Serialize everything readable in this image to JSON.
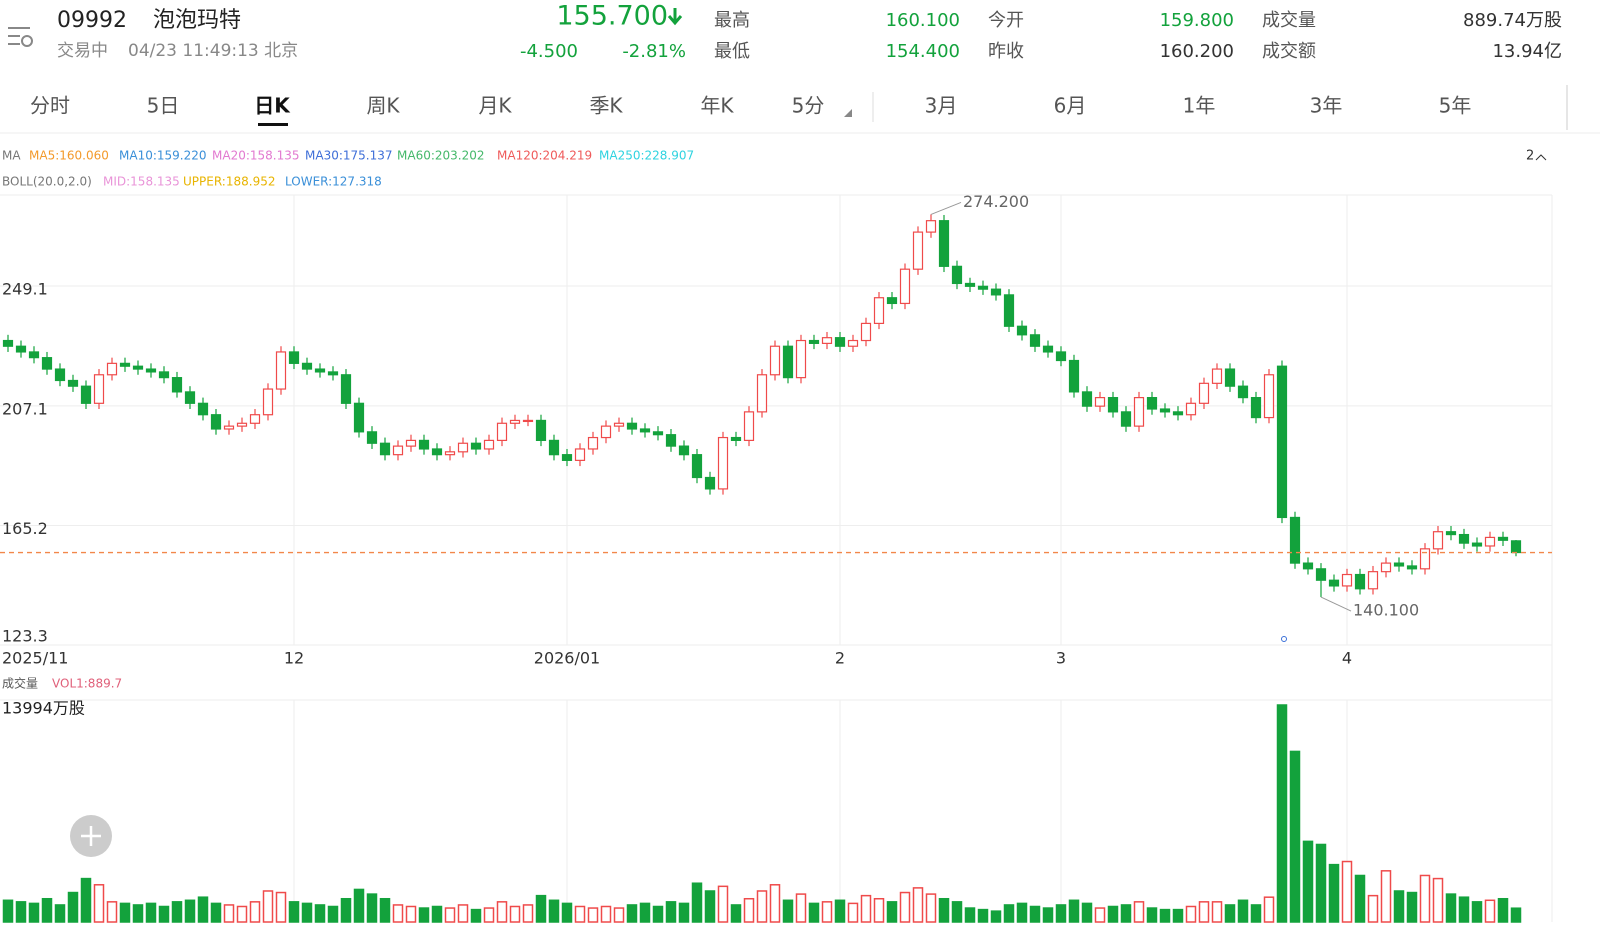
{
  "header": {
    "code": "09992",
    "name": "泡泡玛特",
    "status": "交易中",
    "time": "04/23 11:49:13 北京",
    "price": "155.700",
    "change": "-4.500",
    "change_pct": "-2.81%",
    "stats": [
      {
        "label": "最高",
        "value": "160.100"
      },
      {
        "label": "最低",
        "value": "154.400"
      },
      {
        "label": "今开",
        "value": "159.800"
      },
      {
        "label": "昨收",
        "value": "160.200"
      },
      {
        "label": "成交量",
        "value": "889.74万股"
      },
      {
        "label": "成交额",
        "value": "13.94亿"
      }
    ]
  },
  "tabs": [
    "分时",
    "5日",
    "日K",
    "周K",
    "月K",
    "季K",
    "年K",
    "5分",
    "3月",
    "6月",
    "1年",
    "3年",
    "5年"
  ],
  "indicators": {
    "ma": [
      {
        "text": "MA",
        "color": "#777777"
      },
      {
        "text": "MA5:160.060",
        "color": "#f39a2b"
      },
      {
        "text": "MA10:159.220",
        "color": "#3a8fd8"
      },
      {
        "text": "MA20:158.135",
        "color": "#e27ad0"
      },
      {
        "text": "MA30:175.137",
        "color": "#3f6fd8"
      },
      {
        "text": "MA60:203.202",
        "color": "#45b86a"
      },
      {
        "text": "MA120:204.219",
        "color": "#ef5a5a"
      },
      {
        "text": "MA250:228.907",
        "color": "#2fd3e0"
      }
    ],
    "boll": [
      {
        "text": "BOLL(20.0,2.0)",
        "color": "#777777"
      },
      {
        "text": "MID:158.135",
        "color": "#e994d8"
      },
      {
        "text": "UPPER:188.952",
        "color": "#e8b400"
      },
      {
        "text": "LOWER:127.318",
        "color": "#3a8fd8"
      }
    ],
    "toggle": "2"
  },
  "chart_data": {
    "type": "candlestick",
    "categories": [
      "2025/11",
      null,
      null,
      null,
      null,
      null,
      null,
      null,
      null,
      null,
      null,
      null,
      null,
      null,
      null,
      null,
      null,
      null,
      null,
      null,
      null,
      null,
      "12",
      null,
      null,
      null,
      null,
      null,
      null,
      null,
      null,
      null,
      null,
      null,
      null,
      null,
      null,
      null,
      null,
      null,
      null,
      null,
      null,
      "2026/01",
      null,
      null,
      null,
      null,
      null,
      null,
      null,
      null,
      null,
      null,
      null,
      null,
      null,
      null,
      null,
      null,
      null,
      null,
      null,
      null,
      "2",
      null,
      null,
      null,
      null,
      null,
      null,
      null,
      null,
      null,
      null,
      null,
      null,
      null,
      null,
      null,
      null,
      "3",
      null,
      null,
      null,
      null,
      null,
      null,
      null,
      null,
      null,
      null,
      null,
      null,
      null,
      null,
      null,
      null,
      null,
      null,
      null,
      null,
      null,
      "4",
      null,
      null,
      null,
      null,
      null,
      null,
      null,
      null,
      null,
      null,
      null,
      null,
      null
    ],
    "open": [
      230,
      228,
      226,
      224,
      220,
      216,
      214,
      208,
      218,
      222,
      221,
      220,
      219,
      217,
      212,
      208,
      204,
      199,
      200,
      201,
      204,
      213,
      226,
      222,
      220,
      219,
      218,
      208,
      198,
      194,
      190,
      193,
      195,
      192,
      190,
      191,
      194,
      192,
      195,
      201,
      202,
      202,
      195,
      190,
      188,
      192,
      196,
      200,
      201,
      199,
      198,
      197,
      193,
      190,
      182,
      178,
      196,
      195,
      205,
      218,
      228,
      217,
      230,
      229,
      231,
      228,
      230,
      236,
      245,
      243,
      255,
      268,
      272,
      256,
      250,
      249,
      248,
      246,
      235,
      232,
      228,
      226,
      223,
      212,
      207,
      210,
      205,
      200,
      210,
      206,
      205,
      204,
      208,
      215,
      220,
      214,
      210,
      203,
      221,
      168,
      152,
      150,
      146,
      144,
      148,
      143,
      149,
      152,
      151,
      150,
      157,
      163,
      162,
      159,
      158,
      161,
      159.8
    ],
    "high": [
      232,
      230,
      228,
      226,
      222,
      218,
      216,
      220,
      224,
      224,
      223,
      222,
      221,
      219,
      214,
      210,
      206,
      202,
      203,
      206,
      215,
      228,
      228,
      224,
      222,
      221,
      220,
      210,
      200,
      196,
      195,
      197,
      197,
      194,
      193,
      196,
      196,
      197,
      203,
      204,
      204,
      204,
      197,
      192,
      194,
      198,
      202,
      203,
      203,
      201,
      200,
      199,
      195,
      192,
      184,
      198,
      198,
      207,
      220,
      230,
      230,
      232,
      232,
      233,
      233,
      232,
      238,
      247,
      247,
      257,
      270,
      274.2,
      274,
      258,
      252,
      251,
      250,
      248,
      237,
      234,
      230,
      228,
      225,
      214,
      212,
      212,
      207,
      212,
      212,
      208,
      207,
      210,
      217,
      222,
      222,
      216,
      212,
      220,
      223,
      170,
      154,
      152,
      148,
      150,
      150,
      151,
      154,
      154,
      153,
      159,
      165,
      165,
      164,
      161,
      163,
      163,
      160.1
    ],
    "low": [
      226,
      224,
      222,
      218,
      214,
      212,
      206,
      206,
      216,
      219,
      218,
      217,
      215,
      210,
      206,
      202,
      197,
      197,
      198,
      199,
      202,
      211,
      220,
      218,
      217,
      216,
      206,
      196,
      192,
      188,
      188,
      191,
      190,
      188,
      188,
      189,
      190,
      190,
      193,
      199,
      200,
      193,
      188,
      186,
      186,
      190,
      194,
      198,
      197,
      196,
      195,
      191,
      188,
      180,
      176,
      176,
      193,
      193,
      203,
      216,
      215,
      215,
      227,
      227,
      226,
      226,
      228,
      234,
      241,
      241,
      253,
      266,
      254,
      248,
      247,
      246,
      244,
      233,
      230,
      226,
      224,
      221,
      210,
      205,
      205,
      203,
      198,
      198,
      204,
      203,
      202,
      202,
      206,
      213,
      212,
      208,
      201,
      201,
      166,
      150,
      148,
      140.1,
      142,
      142,
      141,
      141,
      147,
      149,
      148,
      148,
      155,
      160,
      157,
      156,
      156,
      158,
      154.4
    ],
    "close": [
      228,
      226,
      224,
      220,
      216,
      214,
      208,
      218,
      222,
      221,
      220,
      219,
      217,
      212,
      208,
      204,
      199,
      200,
      201,
      204,
      213,
      226,
      222,
      220,
      219,
      218,
      208,
      198,
      194,
      190,
      193,
      195,
      192,
      190,
      191,
      194,
      192,
      195,
      201,
      202,
      202,
      195,
      190,
      188,
      192,
      196,
      200,
      201,
      199,
      198,
      197,
      193,
      190,
      182,
      178,
      196,
      195,
      205,
      218,
      228,
      217,
      230,
      229,
      231,
      228,
      230,
      236,
      245,
      243,
      255,
      268,
      272,
      256,
      250,
      249,
      248,
      246,
      235,
      232,
      228,
      226,
      223,
      212,
      207,
      210,
      205,
      200,
      210,
      206,
      205,
      204,
      208,
      215,
      220,
      214,
      210,
      203,
      218,
      168,
      152,
      150,
      146,
      144,
      148,
      143,
      149,
      152,
      151,
      150,
      157,
      163,
      162,
      159,
      158,
      161,
      160,
      155.7
    ],
    "up_color": "#ef4a4a",
    "down_color": "#13a23c",
    "ylim": [
      123.3,
      281
    ],
    "yticks": [
      123.3,
      165.2,
      207.1,
      249.1
    ],
    "grid": true,
    "current_price": 155.7,
    "current_price_color": "#f2874a",
    "annotations": [
      {
        "index": 71,
        "value": 274.2,
        "label": "274.200"
      },
      {
        "index": 101,
        "value": 140.1,
        "label": "140.100"
      }
    ],
    "volume": {
      "title": "成交量",
      "legend": "VOL1:889.7",
      "axis_label": "13994万股",
      "ylim": [
        0,
        13994
      ],
      "values": [
        1400,
        1300,
        1200,
        1500,
        1100,
        1900,
        2800,
        2400,
        1300,
        1200,
        1100,
        1200,
        1000,
        1300,
        1400,
        1600,
        1200,
        1100,
        1000,
        1300,
        2000,
        1900,
        1300,
        1200,
        1100,
        1000,
        1500,
        2100,
        1800,
        1500,
        1100,
        1000,
        900,
        1000,
        900,
        1100,
        800,
        900,
        1300,
        1000,
        1100,
        1700,
        1400,
        1200,
        1000,
        900,
        1000,
        900,
        1100,
        1200,
        1000,
        1300,
        1200,
        2500,
        2000,
        2300,
        1100,
        1500,
        2000,
        2400,
        1400,
        1800,
        1200,
        1300,
        1400,
        1200,
        1700,
        1500,
        1300,
        1900,
        2200,
        1800,
        1500,
        1300,
        900,
        800,
        700,
        1100,
        1200,
        1000,
        900,
        1100,
        1400,
        1200,
        900,
        1000,
        1100,
        1300,
        900,
        800,
        800,
        1000,
        1300,
        1300,
        1100,
        1400,
        1100,
        1600,
        13994,
        11000,
        5200,
        5000,
        3700,
        3900,
        3000,
        1700,
        3300,
        2000,
        1900,
        3000,
        2800,
        1800,
        1600,
        1300,
        1400,
        1500,
        889.74
      ]
    }
  }
}
